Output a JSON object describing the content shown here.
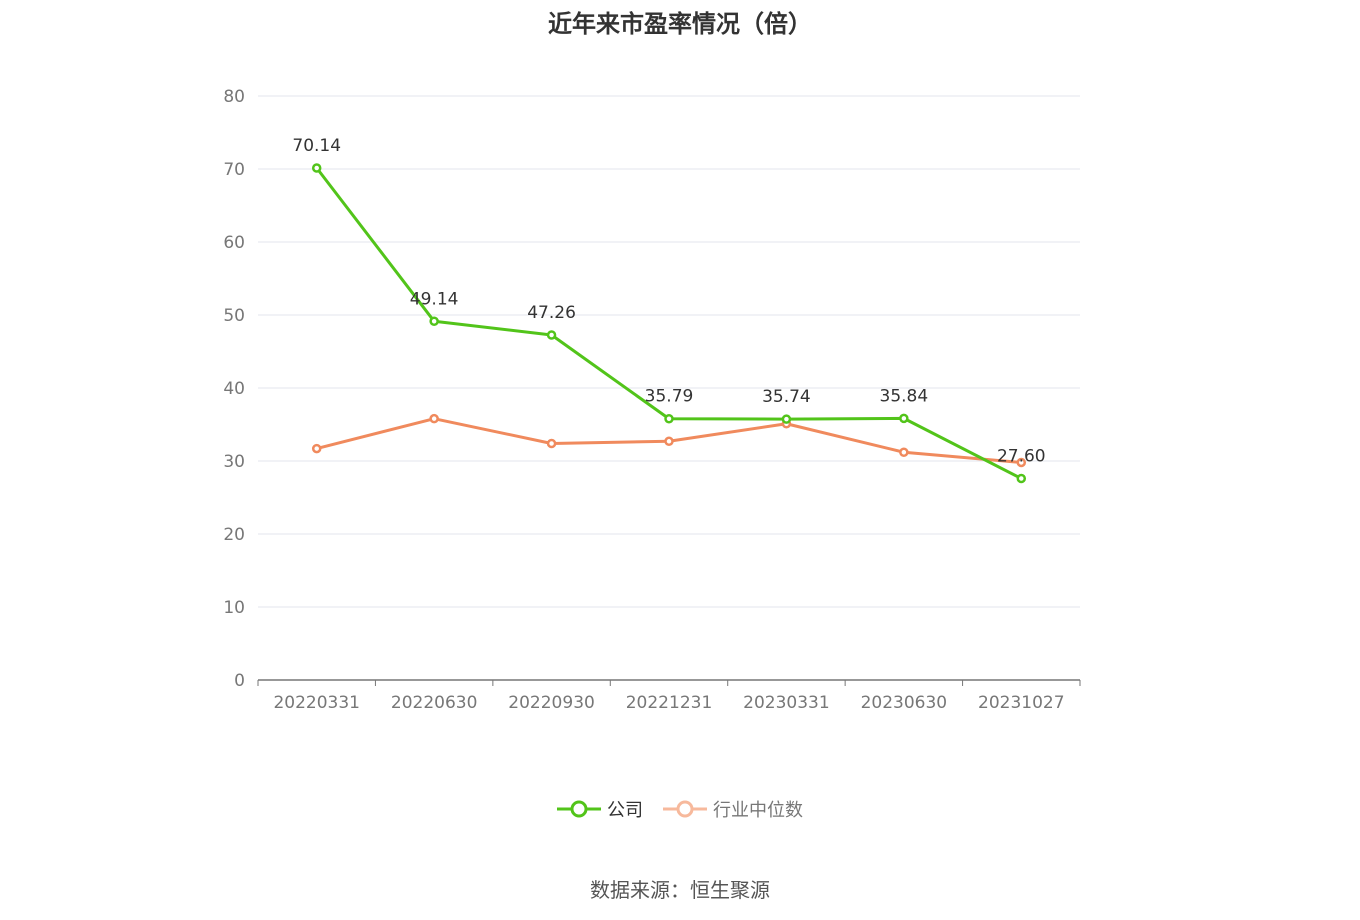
{
  "chart_data": {
    "type": "line",
    "title": "近年来市盈率情况（倍）",
    "categories": [
      "20220331",
      "20220630",
      "20220930",
      "20221231",
      "20230331",
      "20230630",
      "20231027"
    ],
    "ylim": [
      0,
      80
    ],
    "yticks": [
      0,
      10,
      20,
      30,
      40,
      50,
      60,
      70,
      80
    ],
    "grid": true,
    "legend_position": "bottom",
    "series": [
      {
        "name": "公司",
        "color": "#52c41a",
        "values": [
          70.14,
          49.14,
          47.26,
          35.79,
          35.74,
          35.84,
          27.6
        ],
        "labels": [
          "70.14",
          "49.14",
          "47.26",
          "35.79",
          "35.74",
          "35.84",
          "27.60"
        ]
      },
      {
        "name": "行业中位数",
        "color": "#f08a5d",
        "values": [
          31.7,
          35.8,
          32.4,
          32.7,
          35.1,
          31.2,
          29.8
        ]
      }
    ]
  },
  "legend": {
    "company": "公司",
    "industry": "行业中位数"
  },
  "source": "数据来源：恒生聚源"
}
